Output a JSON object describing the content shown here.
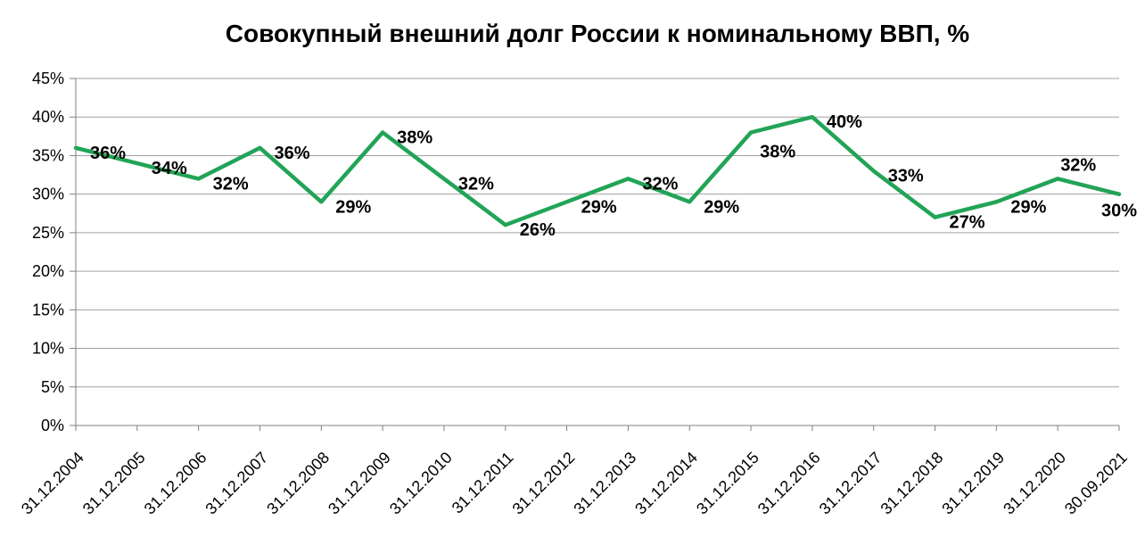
{
  "chart_data": {
    "type": "line",
    "title": "Совокупный внешний долг России к номинальному ВВП, %",
    "categories": [
      "31.12.2004",
      "31.12.2005",
      "31.12.2006",
      "31.12.2007",
      "31.12.2008",
      "31.12.2009",
      "31.12.2010",
      "31.12.2011",
      "31.12.2012",
      "31.12.2013",
      "31.12.2014",
      "31.12.2015",
      "31.12.2016",
      "31.12.2017",
      "31.12.2018",
      "31.12.2019",
      "31.12.2020",
      "30.09.2021"
    ],
    "values": [
      36,
      34,
      32,
      36,
      29,
      38,
      32,
      26,
      29,
      32,
      29,
      38,
      40,
      33,
      27,
      29,
      32,
      30
    ],
    "data_labels": [
      "36%",
      "34%",
      "32%",
      "36%",
      "29%",
      "38%",
      "32%",
      "26%",
      "29%",
      "32%",
      "29%",
      "38%",
      "40%",
      "33%",
      "27%",
      "29%",
      "32%",
      "30%"
    ],
    "xlabel": "",
    "ylabel": "",
    "ylim": [
      0,
      45
    ],
    "y_tick_step": 5,
    "y_tick_labels": [
      "0%",
      "5%",
      "10%",
      "15%",
      "20%",
      "25%",
      "30%",
      "35%",
      "40%",
      "45%"
    ],
    "grid": "horizontal",
    "legend": "none",
    "series_name": "Совокупный внешний долг России к номинальному ВВП",
    "colors": {
      "line": "#22A457",
      "gridline": "#A0A0A0",
      "axis": "#808080",
      "text": "#000000"
    },
    "layout": {
      "x_label_rotation_deg": -45,
      "data_label_default_offset": [
        16,
        12
      ],
      "data_label_offset_overrides": {
        "11": [
          10,
          28
        ],
        "16": [
          3,
          -9
        ],
        "17": [
          -20,
          25
        ]
      }
    }
  }
}
